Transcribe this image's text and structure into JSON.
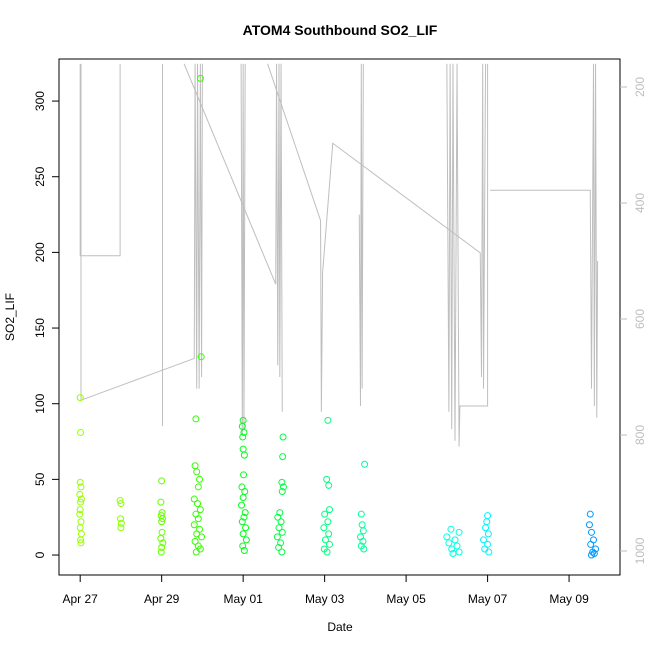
{
  "chart_data": {
    "type": "scatter",
    "title": "ATOM4 Southbound SO2_LIF",
    "x_label": "Date",
    "y_label": "SO2_LIF",
    "xlim": [
      26.48,
      40.25
    ],
    "xticks": [
      {
        "value": 27,
        "label": "Apr 27"
      },
      {
        "value": 29,
        "label": "Apr 29"
      },
      {
        "value": 31,
        "label": "May 01"
      },
      {
        "value": 33,
        "label": "May 03"
      },
      {
        "value": 35,
        "label": "May 05"
      },
      {
        "value": 37,
        "label": "May 07"
      },
      {
        "value": 39,
        "label": "May 09"
      }
    ],
    "ylim": [
      -13.2,
      327.8
    ],
    "yticks": [
      0,
      50,
      100,
      150,
      200,
      250,
      300
    ],
    "y2lim": [
      1041.4,
      151.7
    ],
    "y2ticks": [
      200,
      400,
      600,
      800,
      1000
    ],
    "y2_color": "#bebebe",
    "series": [
      {
        "color": "#99ff00",
        "x": [
          27.0,
          27.01,
          27.0,
          27.02,
          26.99,
          27.03,
          27.01,
          27.0,
          26.99,
          27.02,
          27.0,
          27.03,
          27.01,
          27.02
        ],
        "values": [
          104,
          81,
          48,
          45,
          40,
          37,
          35,
          30,
          27,
          22,
          18,
          14,
          10,
          8
        ]
      },
      {
        "color": "#8cff00",
        "x": [
          27.98,
          28.0,
          27.99,
          28.01,
          28.0
        ],
        "values": [
          36,
          34,
          24,
          21,
          18
        ]
      },
      {
        "color": "#66ff00",
        "x": [
          29.0,
          28.98,
          29.01,
          28.99,
          29.02,
          29.0,
          29.01,
          28.98,
          29.03,
          29.0,
          28.99
        ],
        "values": [
          49,
          35,
          28,
          26,
          24,
          22,
          15,
          11,
          8,
          5,
          2
        ]
      },
      {
        "color": "#33ff00",
        "x": [
          29.95,
          29.97,
          29.84,
          29.82,
          29.86,
          29.93,
          29.9,
          29.8,
          29.88,
          29.95,
          29.84,
          29.9,
          29.8,
          29.93,
          29.86,
          29.98,
          29.82,
          29.9,
          29.95,
          29.85
        ],
        "values": [
          315,
          131,
          90,
          59,
          55,
          50,
          45,
          37,
          34,
          30,
          27,
          24,
          20,
          17,
          14,
          12,
          9,
          6,
          4,
          2
        ]
      },
      {
        "color": "#00ff1a",
        "x": [
          31.0,
          30.98,
          31.02,
          30.99,
          31.0,
          31.03,
          31.01,
          30.97,
          31.04,
          31.0,
          30.96,
          31.05,
          31.02,
          30.98,
          31.06,
          31.0,
          31.08,
          30.99,
          31.03
        ],
        "values": [
          89,
          85,
          81,
          78,
          70,
          66,
          53,
          45,
          42,
          38,
          33,
          28,
          25,
          22,
          18,
          14,
          10,
          6,
          3
        ]
      },
      {
        "color": "#00ff40",
        "x": [
          31.98,
          31.97,
          31.95,
          31.99,
          31.96,
          31.9,
          31.85,
          31.93,
          31.88,
          31.96,
          31.84,
          31.92,
          31.87,
          31.95
        ],
        "values": [
          78,
          65,
          48,
          45,
          42,
          28,
          25,
          22,
          18,
          15,
          12,
          8,
          5,
          2
        ]
      },
      {
        "color": "#00ff80",
        "x": [
          33.08,
          33.05,
          33.1,
          33.12,
          33.0,
          33.08,
          32.98,
          33.1,
          33.02,
          33.12,
          32.99,
          33.06
        ],
        "values": [
          89,
          50,
          46,
          30,
          27,
          22,
          18,
          14,
          10,
          7,
          4,
          2
        ]
      },
      {
        "color": "#00ff99",
        "x": [
          33.98,
          33.9,
          33.92,
          33.95,
          33.88,
          33.94,
          33.9,
          33.96
        ],
        "values": [
          60,
          27,
          20,
          16,
          12,
          9,
          6,
          4
        ]
      },
      {
        "color": "#00ffe6",
        "x": [
          36.1,
          36.3,
          36.0,
          36.2,
          36.05,
          36.25,
          36.12,
          36.3,
          36.15
        ],
        "values": [
          17,
          15,
          12,
          10,
          8,
          6,
          4,
          2,
          1
        ]
      },
      {
        "color": "#00f2ff",
        "x": [
          37.0,
          36.98,
          36.95,
          37.02,
          36.9,
          37.0,
          36.93,
          37.03
        ],
        "values": [
          26,
          22,
          18,
          14,
          10,
          7,
          4,
          2
        ]
      },
      {
        "color": "#0099ff",
        "x": [
          39.52,
          39.5,
          39.55,
          39.6,
          39.53,
          39.65,
          39.58,
          39.62,
          39.55
        ],
        "values": [
          27,
          20,
          15,
          10,
          7,
          4,
          2,
          1,
          0
        ]
      }
    ],
    "line": {
      "axis": "y2",
      "color": "#bebebe",
      "x": [
        27.0,
        27.0,
        27.98,
        27.98,
        null,
        27.02,
        27.02,
        29.8,
        29.82,
        29.86,
        29.88,
        29.92,
        29.95,
        29.98,
        30.0,
        null,
        29.02,
        29.02,
        null,
        29.55,
        31.8,
        31.82,
        31.85,
        31.88,
        31.9,
        31.93,
        31.96,
        null,
        30.95,
        30.98,
        31.0,
        31.02,
        31.05,
        null,
        31.6,
        32.9,
        32.92,
        32.95,
        33.2,
        36.82,
        36.85,
        36.88,
        36.9,
        36.95,
        null,
        33.85,
        33.88,
        33.9,
        33.92,
        33.95,
        null,
        36.0,
        36.05,
        36.08,
        36.12,
        36.15,
        36.2,
        36.25,
        36.3,
        36.32,
        37.0,
        37.0,
        null,
        37.06,
        39.52,
        39.55,
        39.6,
        39.62,
        39.65,
        39.68,
        39.7
      ],
      "values": [
        160,
        491,
        491,
        160,
        null,
        160,
        740,
        668,
        160,
        720,
        160,
        720,
        160,
        700,
        160,
        null,
        160,
        785,
        null,
        160,
        540,
        160,
        680,
        160,
        700,
        160,
        760,
        null,
        160,
        800,
        160,
        790,
        160,
        null,
        160,
        430,
        760,
        520,
        297,
        486,
        700,
        160,
        720,
        160,
        null,
        420,
        750,
        160,
        720,
        160,
        null,
        160,
        760,
        160,
        790,
        160,
        810,
        160,
        820,
        750,
        750,
        160,
        null,
        378,
        378,
        720,
        160,
        750,
        160,
        770,
        500
      ]
    }
  }
}
